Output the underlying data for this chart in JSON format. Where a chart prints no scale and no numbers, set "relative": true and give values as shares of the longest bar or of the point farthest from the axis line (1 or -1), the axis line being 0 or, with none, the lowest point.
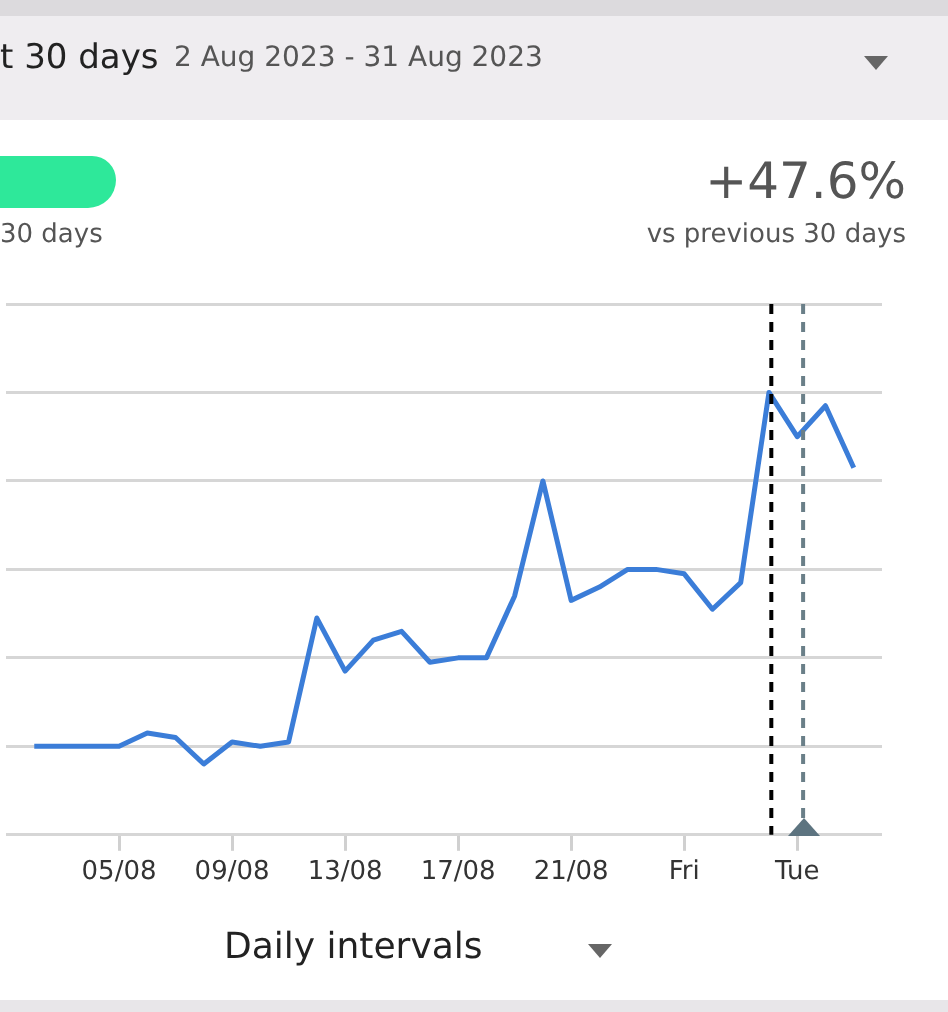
{
  "chart_data": {
    "type": "line",
    "title": "t 30 days",
    "subtitle": "2 Aug 2023 - 31 Aug 2023",
    "annotations": [
      "30 days",
      "+47.6%",
      "vs previous 30 days",
      "Daily intervals"
    ],
    "relative": true,
    "x": [
      "2023-08-02",
      "2023-08-03",
      "2023-08-04",
      "2023-08-05",
      "2023-08-06",
      "2023-08-07",
      "2023-08-08",
      "2023-08-09",
      "2023-08-10",
      "2023-08-11",
      "2023-08-12",
      "2023-08-13",
      "2023-08-14",
      "2023-08-15",
      "2023-08-16",
      "2023-08-17",
      "2023-08-18",
      "2023-08-19",
      "2023-08-20",
      "2023-08-21",
      "2023-08-22",
      "2023-08-23",
      "2023-08-24",
      "2023-08-25",
      "2023-08-26",
      "2023-08-27",
      "2023-08-28",
      "2023-08-29",
      "2023-08-30",
      "2023-08-31"
    ],
    "xlim": [
      "2023-08-01",
      "2023-09-01"
    ],
    "xticks": [
      {
        "value": "2023-08-05",
        "label": "05/08"
      },
      {
        "value": "2023-08-09",
        "label": "09/08"
      },
      {
        "value": "2023-08-13",
        "label": "13/08"
      },
      {
        "value": "2023-08-17",
        "label": "17/08"
      },
      {
        "value": "2023-08-21",
        "label": "21/08"
      },
      {
        "value": "2023-08-25",
        "label": "Fri"
      },
      {
        "value": "2023-08-29",
        "label": "Tue"
      }
    ],
    "series": [
      {
        "color": "#3b7dd8",
        "values": [
          0.2,
          0.2,
          0.2,
          0.2,
          0.23,
          0.22,
          0.16,
          0.21,
          0.2,
          0.21,
          0.49,
          0.37,
          0.44,
          0.46,
          0.39,
          0.4,
          0.4,
          0.54,
          0.8,
          0.53,
          0.56,
          0.6,
          0.6,
          0.59,
          0.51,
          0.57,
          1,
          0.9,
          0.97,
          0.83
        ]
      }
    ],
    "ref_lines": [
      {
        "axis": "x",
        "value": "2023-08-28T02:00",
        "color": "#000000",
        "line_style": "dashed"
      },
      {
        "axis": "x",
        "value": "2023-08-29T05:00",
        "color": "#6a7f88",
        "line_style": "dashed"
      }
    ],
    "grid": "y",
    "marker": "none",
    "line_style": "solid",
    "legend": false
  }
}
